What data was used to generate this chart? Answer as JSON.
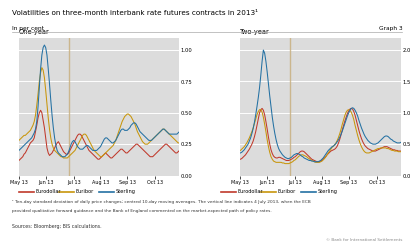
{
  "title": "Volatilities on three-month interbank rate futures contracts in 2013¹",
  "subtitle_left": "In per cent",
  "subtitle_right": "Graph 3",
  "footnote1": "¹ Ten-day standard deviation of daily price changes; centred 10-day moving averages. The vertical line indicates 4 July 2013, when the ECB",
  "footnote2": "provided qualitative forward guidance and the Bank of England commented on the market-expected path of policy rates.",
  "source": "Sources: Bloomberg; BIS calculations.",
  "copyright": "© Bank for International Settlements",
  "panel_left_title": "One-year",
  "panel_right_title": "Two-year",
  "vline_idx": 39,
  "x_tick_labels": [
    "May 13",
    "Jun 13",
    "Jul 13",
    "Aug 13",
    "Sep 13",
    "Oct 13"
  ],
  "x_tick_pos": [
    0,
    21,
    43,
    64,
    85,
    107
  ],
  "n_points": 126,
  "ylim_left": [
    0.0,
    1.1
  ],
  "yticks_left": [
    0.0,
    0.25,
    0.5,
    0.75,
    1.0
  ],
  "ylim_right": [
    0.0,
    2.2
  ],
  "yticks_right": [
    0.0,
    0.5,
    1.0,
    1.5,
    2.0
  ],
  "colors": {
    "eurodollar": "#c0392b",
    "euribor": "#c8960c",
    "sterling": "#2471a3",
    "vline": "#c8b080",
    "bg": "#dcdcdc"
  },
  "legend_entries": [
    "Eurodollar",
    "Euribor",
    "Sterling"
  ],
  "left_eurodollar": [
    0.12,
    0.13,
    0.14,
    0.15,
    0.17,
    0.18,
    0.2,
    0.22,
    0.24,
    0.26,
    0.27,
    0.28,
    0.3,
    0.35,
    0.4,
    0.46,
    0.5,
    0.52,
    0.5,
    0.44,
    0.38,
    0.3,
    0.22,
    0.18,
    0.16,
    0.17,
    0.18,
    0.2,
    0.22,
    0.24,
    0.26,
    0.27,
    0.25,
    0.23,
    0.21,
    0.19,
    0.18,
    0.17,
    0.17,
    0.18,
    0.2,
    0.22,
    0.24,
    0.26,
    0.28,
    0.3,
    0.32,
    0.33,
    0.33,
    0.32,
    0.3,
    0.28,
    0.26,
    0.24,
    0.22,
    0.2,
    0.19,
    0.18,
    0.17,
    0.16,
    0.15,
    0.14,
    0.13,
    0.13,
    0.14,
    0.15,
    0.16,
    0.17,
    0.18,
    0.17,
    0.16,
    0.15,
    0.14,
    0.14,
    0.15,
    0.16,
    0.17,
    0.18,
    0.19,
    0.2,
    0.21,
    0.21,
    0.2,
    0.19,
    0.18,
    0.18,
    0.19,
    0.2,
    0.21,
    0.22,
    0.23,
    0.24,
    0.25,
    0.25,
    0.24,
    0.23,
    0.22,
    0.21,
    0.2,
    0.19,
    0.18,
    0.17,
    0.16,
    0.15,
    0.15,
    0.15,
    0.16,
    0.17,
    0.18,
    0.19,
    0.2,
    0.21,
    0.22,
    0.23,
    0.24,
    0.25,
    0.25,
    0.24,
    0.23,
    0.22,
    0.21,
    0.2,
    0.19,
    0.18,
    0.18,
    0.19,
    0.2
  ],
  "left_euribor": [
    0.28,
    0.29,
    0.3,
    0.31,
    0.32,
    0.32,
    0.33,
    0.34,
    0.35,
    0.36,
    0.38,
    0.4,
    0.43,
    0.48,
    0.56,
    0.65,
    0.75,
    0.82,
    0.86,
    0.84,
    0.78,
    0.68,
    0.57,
    0.46,
    0.37,
    0.3,
    0.25,
    0.22,
    0.2,
    0.19,
    0.18,
    0.17,
    0.16,
    0.15,
    0.15,
    0.14,
    0.14,
    0.14,
    0.14,
    0.15,
    0.16,
    0.17,
    0.18,
    0.19,
    0.2,
    0.22,
    0.24,
    0.26,
    0.28,
    0.3,
    0.32,
    0.33,
    0.33,
    0.32,
    0.3,
    0.28,
    0.26,
    0.24,
    0.22,
    0.2,
    0.19,
    0.18,
    0.17,
    0.16,
    0.15,
    0.15,
    0.16,
    0.17,
    0.18,
    0.19,
    0.2,
    0.21,
    0.22,
    0.23,
    0.24,
    0.26,
    0.28,
    0.31,
    0.34,
    0.37,
    0.4,
    0.43,
    0.45,
    0.47,
    0.48,
    0.49,
    0.49,
    0.48,
    0.47,
    0.45,
    0.43,
    0.41,
    0.38,
    0.35,
    0.33,
    0.31,
    0.29,
    0.27,
    0.26,
    0.25,
    0.25,
    0.25,
    0.26,
    0.27,
    0.28,
    0.29,
    0.3,
    0.31,
    0.32,
    0.33,
    0.34,
    0.35,
    0.36,
    0.37,
    0.37,
    0.36,
    0.35,
    0.34,
    0.33,
    0.32,
    0.31,
    0.3,
    0.29,
    0.28,
    0.27,
    0.26,
    0.26
  ],
  "left_sterling": [
    0.2,
    0.21,
    0.22,
    0.23,
    0.24,
    0.25,
    0.26,
    0.27,
    0.28,
    0.29,
    0.3,
    0.32,
    0.34,
    0.37,
    0.43,
    0.55,
    0.7,
    0.85,
    0.96,
    1.02,
    1.04,
    1.02,
    0.96,
    0.85,
    0.73,
    0.6,
    0.48,
    0.38,
    0.3,
    0.24,
    0.2,
    0.18,
    0.17,
    0.16,
    0.15,
    0.15,
    0.15,
    0.16,
    0.17,
    0.19,
    0.22,
    0.25,
    0.27,
    0.28,
    0.27,
    0.25,
    0.23,
    0.22,
    0.21,
    0.21,
    0.21,
    0.22,
    0.23,
    0.24,
    0.24,
    0.23,
    0.22,
    0.21,
    0.2,
    0.2,
    0.2,
    0.2,
    0.21,
    0.22,
    0.23,
    0.25,
    0.27,
    0.29,
    0.3,
    0.3,
    0.29,
    0.28,
    0.27,
    0.26,
    0.26,
    0.27,
    0.28,
    0.3,
    0.32,
    0.34,
    0.36,
    0.37,
    0.37,
    0.36,
    0.36,
    0.36,
    0.37,
    0.38,
    0.4,
    0.41,
    0.42,
    0.42,
    0.41,
    0.39,
    0.37,
    0.35,
    0.34,
    0.33,
    0.32,
    0.31,
    0.3,
    0.29,
    0.28,
    0.28,
    0.28,
    0.29,
    0.3,
    0.31,
    0.32,
    0.33,
    0.34,
    0.35,
    0.36,
    0.37,
    0.37,
    0.36,
    0.35,
    0.34,
    0.33,
    0.33,
    0.33,
    0.33,
    0.33,
    0.33,
    0.33,
    0.34,
    0.35
  ],
  "right_eurodollar": [
    0.26,
    0.27,
    0.29,
    0.31,
    0.33,
    0.36,
    0.39,
    0.42,
    0.46,
    0.5,
    0.55,
    0.62,
    0.7,
    0.8,
    0.9,
    1.0,
    1.05,
    1.07,
    1.04,
    0.97,
    0.86,
    0.74,
    0.61,
    0.5,
    0.41,
    0.35,
    0.31,
    0.29,
    0.28,
    0.28,
    0.29,
    0.29,
    0.28,
    0.27,
    0.26,
    0.25,
    0.24,
    0.24,
    0.24,
    0.25,
    0.26,
    0.27,
    0.29,
    0.3,
    0.32,
    0.34,
    0.36,
    0.38,
    0.39,
    0.39,
    0.38,
    0.36,
    0.34,
    0.32,
    0.3,
    0.28,
    0.26,
    0.25,
    0.24,
    0.23,
    0.22,
    0.22,
    0.22,
    0.23,
    0.24,
    0.26,
    0.28,
    0.3,
    0.33,
    0.35,
    0.37,
    0.39,
    0.4,
    0.41,
    0.42,
    0.44,
    0.47,
    0.52,
    0.58,
    0.65,
    0.73,
    0.8,
    0.87,
    0.93,
    0.99,
    1.03,
    1.06,
    1.07,
    1.06,
    1.02,
    0.96,
    0.88,
    0.8,
    0.72,
    0.65,
    0.59,
    0.54,
    0.5,
    0.47,
    0.45,
    0.43,
    0.42,
    0.41,
    0.4,
    0.39,
    0.39,
    0.39,
    0.4,
    0.41,
    0.42,
    0.43,
    0.44,
    0.45,
    0.46,
    0.46,
    0.46,
    0.45,
    0.44,
    0.43,
    0.42,
    0.41,
    0.41,
    0.4,
    0.4,
    0.39,
    0.39,
    0.39
  ],
  "right_euribor": [
    0.4,
    0.42,
    0.44,
    0.46,
    0.49,
    0.52,
    0.56,
    0.6,
    0.65,
    0.7,
    0.76,
    0.83,
    0.9,
    0.97,
    1.02,
    1.05,
    1.05,
    1.01,
    0.93,
    0.82,
    0.7,
    0.57,
    0.46,
    0.37,
    0.3,
    0.26,
    0.23,
    0.22,
    0.21,
    0.21,
    0.21,
    0.21,
    0.21,
    0.2,
    0.2,
    0.19,
    0.19,
    0.19,
    0.19,
    0.2,
    0.21,
    0.22,
    0.24,
    0.25,
    0.27,
    0.29,
    0.31,
    0.32,
    0.33,
    0.33,
    0.32,
    0.31,
    0.3,
    0.28,
    0.27,
    0.25,
    0.24,
    0.23,
    0.22,
    0.21,
    0.21,
    0.21,
    0.21,
    0.22,
    0.23,
    0.25,
    0.27,
    0.3,
    0.33,
    0.36,
    0.39,
    0.42,
    0.45,
    0.47,
    0.49,
    0.52,
    0.56,
    0.61,
    0.67,
    0.74,
    0.82,
    0.89,
    0.96,
    1.01,
    1.04,
    1.05,
    1.04,
    1.01,
    0.96,
    0.89,
    0.8,
    0.72,
    0.64,
    0.57,
    0.51,
    0.46,
    0.42,
    0.39,
    0.37,
    0.36,
    0.36,
    0.36,
    0.37,
    0.38,
    0.39,
    0.4,
    0.41,
    0.42,
    0.43,
    0.43,
    0.44,
    0.44,
    0.44,
    0.44,
    0.44,
    0.43,
    0.43,
    0.42,
    0.41,
    0.4,
    0.4,
    0.39,
    0.39,
    0.39,
    0.38,
    0.38,
    0.38
  ],
  "right_sterling": [
    0.36,
    0.37,
    0.39,
    0.41,
    0.44,
    0.47,
    0.5,
    0.55,
    0.6,
    0.67,
    0.75,
    0.85,
    0.97,
    1.1,
    1.24,
    1.4,
    1.6,
    1.82,
    2.0,
    1.95,
    1.82,
    1.65,
    1.46,
    1.27,
    1.1,
    0.93,
    0.79,
    0.67,
    0.57,
    0.49,
    0.43,
    0.39,
    0.36,
    0.33,
    0.31,
    0.29,
    0.28,
    0.27,
    0.27,
    0.28,
    0.29,
    0.31,
    0.33,
    0.34,
    0.35,
    0.35,
    0.34,
    0.33,
    0.31,
    0.3,
    0.28,
    0.27,
    0.26,
    0.25,
    0.24,
    0.24,
    0.23,
    0.23,
    0.22,
    0.22,
    0.22,
    0.22,
    0.23,
    0.24,
    0.26,
    0.28,
    0.31,
    0.34,
    0.37,
    0.4,
    0.42,
    0.44,
    0.46,
    0.47,
    0.49,
    0.51,
    0.54,
    0.57,
    0.61,
    0.66,
    0.71,
    0.77,
    0.83,
    0.89,
    0.95,
    1.0,
    1.04,
    1.07,
    1.08,
    1.07,
    1.04,
    1.0,
    0.95,
    0.88,
    0.82,
    0.76,
    0.71,
    0.66,
    0.62,
    0.59,
    0.56,
    0.54,
    0.52,
    0.51,
    0.5,
    0.5,
    0.5,
    0.51,
    0.52,
    0.54,
    0.56,
    0.58,
    0.6,
    0.62,
    0.63,
    0.63,
    0.62,
    0.6,
    0.58,
    0.57,
    0.55,
    0.54,
    0.53,
    0.52,
    0.52,
    0.52,
    0.53
  ]
}
